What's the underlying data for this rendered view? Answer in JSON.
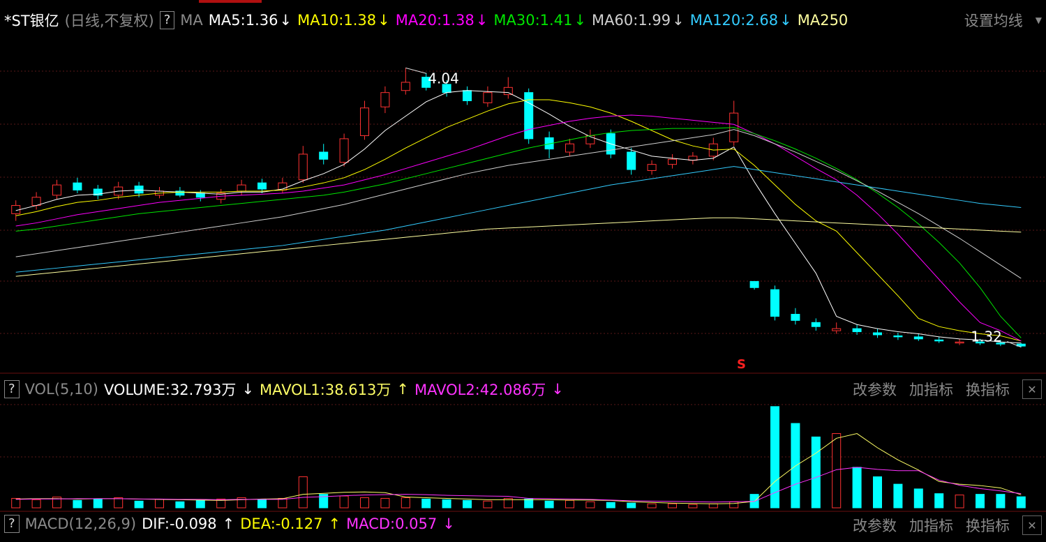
{
  "chart_data": [
    {
      "type": "candlestick",
      "title": "*ST银亿",
      "subtitle": "(日线,不复权)",
      "help": "?",
      "indicator": "MA",
      "settings_button": "设置均线",
      "ylim": [
        1.1,
        4.09
      ],
      "up_color": "#ff3232",
      "down_color": "#00ffff",
      "open": [
        2.62,
        2.7,
        2.8,
        2.92,
        2.86,
        2.8,
        2.89,
        2.8,
        2.84,
        2.82,
        2.76,
        2.84,
        2.92,
        2.85,
        2.95,
        3.22,
        3.12,
        3.38,
        3.66,
        3.82,
        3.95,
        3.88,
        3.82,
        3.7,
        3.78,
        3.8,
        3.36,
        3.22,
        3.3,
        3.4,
        3.22,
        3.04,
        3.1,
        3.14,
        3.18,
        3.32,
        1.96,
        1.88,
        1.64,
        1.56,
        1.48,
        1.5,
        1.46,
        1.43,
        1.42,
        1.39,
        1.36,
        1.37,
        1.36,
        1.35
      ],
      "high": [
        2.75,
        2.83,
        2.95,
        2.97,
        2.9,
        2.93,
        2.93,
        2.88,
        2.88,
        2.85,
        2.86,
        2.95,
        2.96,
        2.97,
        3.28,
        3.3,
        3.4,
        3.72,
        3.86,
        4.04,
        3.99,
        3.92,
        3.86,
        3.86,
        3.95,
        3.84,
        3.42,
        3.35,
        3.44,
        3.44,
        3.26,
        3.14,
        3.2,
        3.22,
        3.36,
        3.72,
        1.96,
        1.92,
        1.7,
        1.6,
        1.56,
        1.54,
        1.5,
        1.46,
        1.45,
        1.42,
        1.4,
        1.4,
        1.39,
        1.36
      ],
      "low": [
        2.55,
        2.66,
        2.76,
        2.82,
        2.76,
        2.76,
        2.78,
        2.77,
        2.78,
        2.74,
        2.72,
        2.8,
        2.82,
        2.82,
        2.92,
        3.1,
        3.08,
        3.34,
        3.6,
        3.78,
        3.82,
        3.76,
        3.68,
        3.66,
        3.74,
        3.3,
        3.16,
        3.18,
        3.26,
        3.16,
        3.0,
        3.0,
        3.06,
        3.1,
        3.14,
        3.28,
        1.88,
        1.58,
        1.54,
        1.48,
        1.45,
        1.44,
        1.41,
        1.39,
        1.38,
        1.36,
        1.34,
        1.34,
        1.33,
        1.32
      ],
      "close": [
        2.7,
        2.78,
        2.9,
        2.85,
        2.8,
        2.88,
        2.82,
        2.84,
        2.8,
        2.78,
        2.82,
        2.9,
        2.86,
        2.92,
        3.2,
        3.15,
        3.35,
        3.65,
        3.8,
        3.9,
        3.85,
        3.8,
        3.72,
        3.8,
        3.85,
        3.35,
        3.25,
        3.3,
        3.38,
        3.2,
        3.05,
        3.1,
        3.15,
        3.18,
        3.3,
        3.6,
        1.9,
        1.62,
        1.58,
        1.52,
        1.5,
        1.47,
        1.44,
        1.42,
        1.4,
        1.38,
        1.37,
        1.36,
        1.35,
        1.33
      ],
      "series": [
        {
          "name": "MA5:1.36",
          "trend": "↓",
          "color": "#ffffff",
          "values": [
            2.65,
            2.7,
            2.76,
            2.8,
            2.81,
            2.84,
            2.85,
            2.84,
            2.83,
            2.82,
            2.81,
            2.83,
            2.83,
            2.86,
            2.94,
            3.01,
            3.1,
            3.25,
            3.43,
            3.57,
            3.71,
            3.8,
            3.82,
            3.81,
            3.8,
            3.7,
            3.59,
            3.47,
            3.37,
            3.3,
            3.24,
            3.18,
            3.16,
            3.14,
            3.16,
            3.27,
            2.93,
            2.62,
            2.33,
            2.04,
            1.62,
            1.54,
            1.5,
            1.47,
            1.45,
            1.42,
            1.4,
            1.39,
            1.37,
            1.36
          ]
        },
        {
          "name": "MA10:1.38",
          "trend": "↓",
          "color": "#ffff00",
          "values": [
            2.6,
            2.64,
            2.69,
            2.73,
            2.75,
            2.78,
            2.8,
            2.82,
            2.83,
            2.83,
            2.83,
            2.84,
            2.84,
            2.85,
            2.88,
            2.92,
            2.97,
            3.05,
            3.15,
            3.26,
            3.36,
            3.46,
            3.54,
            3.62,
            3.69,
            3.73,
            3.73,
            3.7,
            3.66,
            3.6,
            3.52,
            3.43,
            3.34,
            3.28,
            3.24,
            3.25,
            3.09,
            2.9,
            2.71,
            2.55,
            2.45,
            2.24,
            2.03,
            1.82,
            1.6,
            1.52,
            1.48,
            1.45,
            1.43,
            1.38
          ]
        },
        {
          "name": "MA20:1.38",
          "trend": "↓",
          "color": "#ff00ff",
          "values": [
            2.5,
            2.53,
            2.57,
            2.61,
            2.64,
            2.67,
            2.7,
            2.73,
            2.75,
            2.77,
            2.79,
            2.8,
            2.81,
            2.82,
            2.84,
            2.87,
            2.9,
            2.95,
            3.0,
            3.06,
            3.12,
            3.18,
            3.24,
            3.31,
            3.38,
            3.44,
            3.48,
            3.52,
            3.55,
            3.57,
            3.58,
            3.57,
            3.55,
            3.53,
            3.51,
            3.49,
            3.4,
            3.3,
            3.18,
            3.06,
            2.95,
            2.8,
            2.62,
            2.42,
            2.2,
            1.98,
            1.76,
            1.56,
            1.48,
            1.38
          ]
        },
        {
          "name": "MA30:1.41",
          "trend": "↓",
          "color": "#00e600",
          "values": [
            2.45,
            2.47,
            2.5,
            2.53,
            2.56,
            2.59,
            2.62,
            2.64,
            2.66,
            2.68,
            2.7,
            2.72,
            2.74,
            2.76,
            2.78,
            2.8,
            2.83,
            2.87,
            2.91,
            2.96,
            3.01,
            3.06,
            3.11,
            3.16,
            3.21,
            3.26,
            3.3,
            3.34,
            3.38,
            3.41,
            3.43,
            3.44,
            3.45,
            3.45,
            3.45,
            3.46,
            3.4,
            3.33,
            3.25,
            3.16,
            3.06,
            2.95,
            2.82,
            2.68,
            2.52,
            2.34,
            2.14,
            1.9,
            1.62,
            1.41
          ]
        },
        {
          "name": "MA60:1.99",
          "trend": "↓",
          "color": "#d0d0d0",
          "values": [
            2.2,
            2.23,
            2.26,
            2.29,
            2.32,
            2.35,
            2.38,
            2.41,
            2.44,
            2.47,
            2.5,
            2.53,
            2.56,
            2.59,
            2.63,
            2.67,
            2.71,
            2.76,
            2.81,
            2.86,
            2.91,
            2.96,
            3.01,
            3.05,
            3.09,
            3.12,
            3.15,
            3.18,
            3.21,
            3.24,
            3.27,
            3.3,
            3.33,
            3.36,
            3.39,
            3.44,
            3.38,
            3.3,
            3.22,
            3.13,
            3.04,
            2.94,
            2.84,
            2.73,
            2.62,
            2.5,
            2.38,
            2.25,
            2.12,
            1.99
          ]
        },
        {
          "name": "MA120:2.68",
          "trend": "↓",
          "color": "#33ccff",
          "values": [
            2.05,
            2.07,
            2.09,
            2.11,
            2.13,
            2.15,
            2.17,
            2.19,
            2.21,
            2.23,
            2.25,
            2.27,
            2.29,
            2.31,
            2.34,
            2.37,
            2.4,
            2.43,
            2.46,
            2.5,
            2.54,
            2.58,
            2.62,
            2.66,
            2.7,
            2.74,
            2.78,
            2.82,
            2.86,
            2.9,
            2.93,
            2.96,
            2.99,
            3.02,
            3.05,
            3.08,
            3.05,
            3.02,
            2.99,
            2.96,
            2.93,
            2.9,
            2.87,
            2.84,
            2.81,
            2.78,
            2.75,
            2.72,
            2.7,
            2.68
          ]
        },
        {
          "name": "MA250",
          "color": "#ffffa0",
          "values": [
            2.01,
            2.03,
            2.05,
            2.07,
            2.09,
            2.11,
            2.13,
            2.15,
            2.17,
            2.19,
            2.21,
            2.23,
            2.25,
            2.27,
            2.29,
            2.31,
            2.33,
            2.35,
            2.37,
            2.39,
            2.41,
            2.43,
            2.45,
            2.47,
            2.48,
            2.49,
            2.5,
            2.51,
            2.52,
            2.53,
            2.54,
            2.55,
            2.56,
            2.57,
            2.58,
            2.58,
            2.57,
            2.56,
            2.55,
            2.54,
            2.53,
            2.52,
            2.51,
            2.5,
            2.49,
            2.48,
            2.47,
            2.46,
            2.45,
            2.44
          ]
        }
      ],
      "annotations": {
        "high": "4.04",
        "low": "1.32",
        "signal": "S"
      }
    },
    {
      "type": "bar",
      "title": "VOL(5,10)",
      "help": "?",
      "ylim": [
        0,
        310
      ],
      "values": [
        28,
        24,
        32,
        22,
        26,
        30,
        20,
        25,
        18,
        22,
        26,
        30,
        24,
        28,
        92,
        40,
        35,
        30,
        28,
        30,
        26,
        24,
        22,
        20,
        28,
        26,
        20,
        22,
        18,
        16,
        14,
        12,
        12,
        10,
        12,
        18,
        40,
        300,
        250,
        210,
        220,
        120,
        92,
        70,
        56,
        42,
        38,
        40,
        40,
        32.793
      ],
      "value_name": "VOLUME:32.793万",
      "value_trend": "↓",
      "series": [
        {
          "name": "MAVOL1:38.613万",
          "trend": "↑",
          "color": "#ffff66",
          "values": [
            26,
            27,
            27,
            26,
            27,
            27,
            26,
            25,
            24,
            23,
            22,
            24,
            26,
            27,
            40,
            43,
            46,
            47,
            45,
            32,
            30,
            28,
            26,
            24,
            24,
            24,
            24,
            23,
            23,
            22,
            18,
            16,
            14,
            13,
            12,
            13,
            19,
            78,
            124,
            162,
            206,
            220,
            178,
            142,
            112,
            78,
            70,
            66,
            59,
            38.613
          ]
        },
        {
          "name": "MAVOL2:42.086万",
          "trend": "↓",
          "color": "#ff33ff",
          "values": [
            25,
            26,
            26,
            27,
            27,
            27,
            26,
            26,
            25,
            25,
            24,
            25,
            25,
            25,
            31,
            33,
            36,
            38,
            39,
            40,
            39,
            37,
            36,
            35,
            34,
            28,
            27,
            26,
            25,
            23,
            21,
            20,
            19,
            18,
            17,
            18,
            19,
            45,
            70,
            90,
            113,
            120,
            114,
            110,
            110,
            82,
            67,
            57,
            50,
            42.086
          ]
        }
      ],
      "buttons": [
        "改参数",
        "加指标",
        "换指标"
      ],
      "close": "✕"
    }
  ],
  "macd_header": {
    "help": "?",
    "title": "MACD(12,26,9)",
    "items": [
      {
        "label": "DIF:-0.098",
        "trend": "↑",
        "color": "#ffffff"
      },
      {
        "label": "DEA:-0.127",
        "trend": "↑",
        "color": "#ffff00"
      },
      {
        "label": "MACD:0.057",
        "trend": "↓",
        "color": "#ff33ff"
      }
    ],
    "buttons": [
      "改参数",
      "加指标",
      "换指标"
    ],
    "close": "✕"
  }
}
